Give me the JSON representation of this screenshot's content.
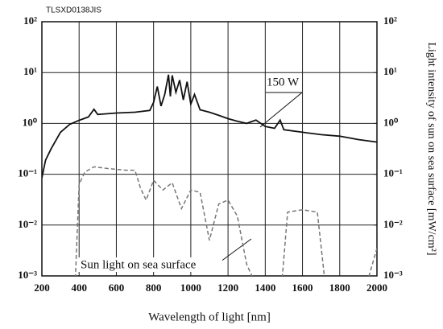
{
  "chart_data": {
    "type": "line",
    "code": "TLSXD0138JIS",
    "xlabel": "Wavelength of light [nm]",
    "y2label": "Light intensity of sun on sea surface [mW/cm²]",
    "log_y": true,
    "grid": true,
    "xlim": [
      200,
      2000
    ],
    "xticks": [
      200,
      400,
      600,
      800,
      1000,
      1200,
      1400,
      1600,
      1800,
      2000
    ],
    "ylim": [
      0.001,
      100
    ],
    "yticks": [
      {
        "value": 100,
        "label": "10²"
      },
      {
        "value": 10,
        "label": "10¹"
      },
      {
        "value": 1,
        "label": "10⁰"
      },
      {
        "value": 0.1,
        "label": "10⁻¹"
      },
      {
        "value": 0.01,
        "label": "10⁻²"
      },
      {
        "value": 0.001,
        "label": "10⁻³"
      }
    ],
    "y2lim": [
      0.001,
      100
    ],
    "y2ticks": [
      {
        "value": 100,
        "label": "10²"
      },
      {
        "value": 10,
        "label": "10¹"
      },
      {
        "value": 1,
        "label": "10⁰"
      },
      {
        "value": 0.1,
        "label": "10⁻¹"
      },
      {
        "value": 0.01,
        "label": "10⁻²"
      },
      {
        "value": 0.001,
        "label": "10⁻³"
      }
    ],
    "annotations": [
      "150 W",
      "Sun light on sea surface"
    ],
    "series": [
      {
        "name": "150 W",
        "color": "#111111",
        "dash": false,
        "x": [
          200,
          220,
          250,
          300,
          350,
          400,
          450,
          480,
          500,
          600,
          700,
          780,
          800,
          820,
          840,
          860,
          880,
          890,
          900,
          920,
          940,
          960,
          980,
          1000,
          1020,
          1050,
          1100,
          1150,
          1200,
          1250,
          1300,
          1350,
          1400,
          1450,
          1480,
          1500,
          1600,
          1700,
          1800,
          1900,
          2000
        ],
        "values": [
          0.085,
          0.19,
          0.32,
          0.67,
          0.96,
          1.15,
          1.34,
          1.9,
          1.5,
          1.6,
          1.66,
          1.8,
          2.6,
          5.3,
          2.2,
          3.7,
          9.1,
          3.4,
          8.8,
          4.1,
          7.1,
          2.9,
          6.6,
          2.4,
          3.7,
          1.85,
          1.66,
          1.44,
          1.24,
          1.1,
          1.0,
          1.16,
          0.87,
          0.8,
          1.16,
          0.75,
          0.67,
          0.6,
          0.56,
          0.48,
          0.43
        ]
      },
      {
        "name": "Sun light on sea surface",
        "color": "#777777",
        "dash": true,
        "x": [
          380,
          400,
          430,
          480,
          550,
          650,
          700,
          730,
          760,
          800,
          850,
          900,
          950,
          1000,
          1050,
          1100,
          1150,
          1200,
          1250,
          1300,
          1340,
          1490,
          1520,
          1600,
          1680,
          1720,
          1950,
          2000
        ],
        "values": [
          0.0009,
          0.063,
          0.11,
          0.14,
          0.13,
          0.12,
          0.12,
          0.053,
          0.031,
          0.076,
          0.049,
          0.068,
          0.021,
          0.049,
          0.044,
          0.005,
          0.026,
          0.031,
          0.015,
          0.0017,
          0.0008,
          0.0008,
          0.018,
          0.02,
          0.018,
          0.0008,
          0.0008,
          0.0035
        ]
      }
    ]
  }
}
